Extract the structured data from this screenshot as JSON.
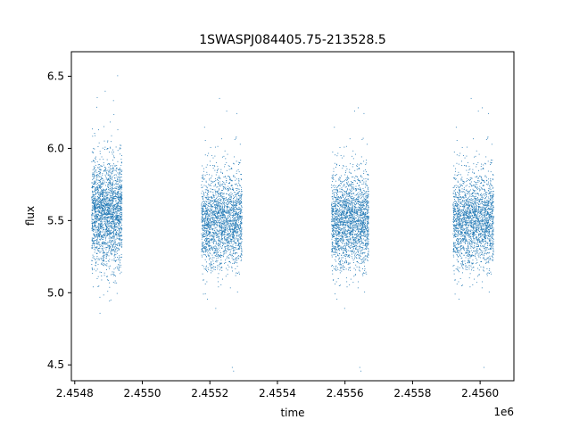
{
  "chart_data": {
    "type": "scatter",
    "title": "1SWASPJ084405.75-213528.5",
    "xlabel": "time",
    "ylabel": "flux",
    "x_offset_label": "1e6",
    "xlim": [
      2454790,
      2456100
    ],
    "ylim": [
      4.39,
      6.67
    ],
    "x_ticks": [
      2454800,
      2455000,
      2455200,
      2455400,
      2455600,
      2455800,
      2456000
    ],
    "x_tick_labels": [
      "2.4548",
      "2.4550",
      "2.4552",
      "2.4554",
      "2.4556",
      "2.4558",
      "2.4560"
    ],
    "y_ticks": [
      4.5,
      5.0,
      5.5,
      6.0,
      6.5
    ],
    "y_tick_labels": [
      "4.5",
      "5.0",
      "5.5",
      "6.0",
      "6.5"
    ],
    "grid": false,
    "marker_color": "#1f77b4",
    "segments": [
      {
        "x_start": 2454850,
        "x_end": 2454940,
        "center": 5.55,
        "spread": 0.18
      },
      {
        "x_start": 2455175,
        "x_end": 2455295,
        "center": 5.5,
        "spread": 0.16
      },
      {
        "x_start": 2455560,
        "x_end": 2455670,
        "center": 5.5,
        "spread": 0.16
      },
      {
        "x_start": 2455920,
        "x_end": 2456040,
        "center": 5.5,
        "spread": 0.16
      }
    ]
  }
}
